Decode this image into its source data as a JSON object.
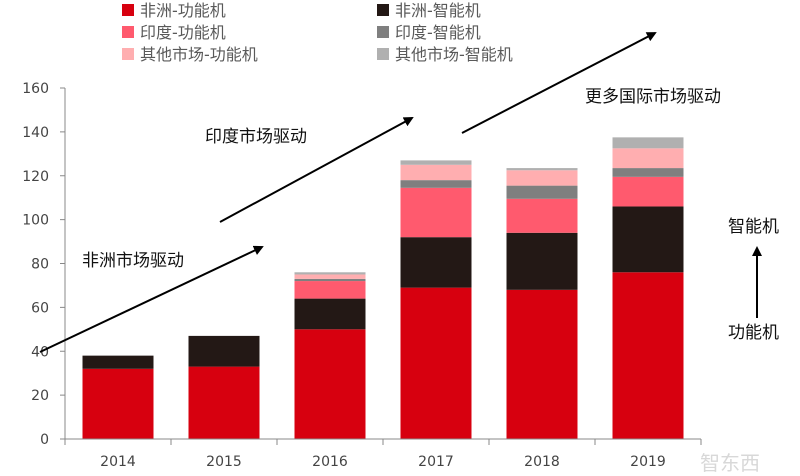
{
  "chart_data": {
    "type": "bar",
    "stacked": true,
    "categories": [
      "2014",
      "2015",
      "2016",
      "2017",
      "2018",
      "2019"
    ],
    "ylim": [
      0,
      160
    ],
    "yticks": [
      0,
      20,
      40,
      60,
      80,
      100,
      120,
      140,
      160
    ],
    "grid": false,
    "legend_placement": "top",
    "series": [
      {
        "name": "非洲-功能机",
        "color": "#d7000f",
        "values": [
          32,
          33,
          50,
          69,
          68,
          76
        ]
      },
      {
        "name": "非洲-智能机",
        "color": "#231815",
        "values": [
          6,
          14,
          14,
          23,
          26,
          30
        ]
      },
      {
        "name": "印度-功能机",
        "color": "#ff5a6e",
        "values": [
          0,
          0,
          8,
          22.5,
          15.5,
          13.5
        ]
      },
      {
        "name": "印度-智能机",
        "color": "#7f7f7f",
        "values": [
          0,
          0,
          1,
          3.5,
          6,
          4
        ]
      },
      {
        "name": "其他市场-功能机",
        "color": "#ffaeb0",
        "values": [
          0,
          0,
          2,
          7,
          7,
          9
        ]
      },
      {
        "name": "其他市场-智能机",
        "color": "#b0b0b0",
        "values": [
          0,
          0,
          1,
          2,
          1,
          5
        ]
      }
    ],
    "annotations": [
      "非洲市场驱动",
      "印度市场驱动",
      "更多国际市场驱动",
      "智能机",
      "功能机"
    ]
  },
  "watermark": "智东西"
}
